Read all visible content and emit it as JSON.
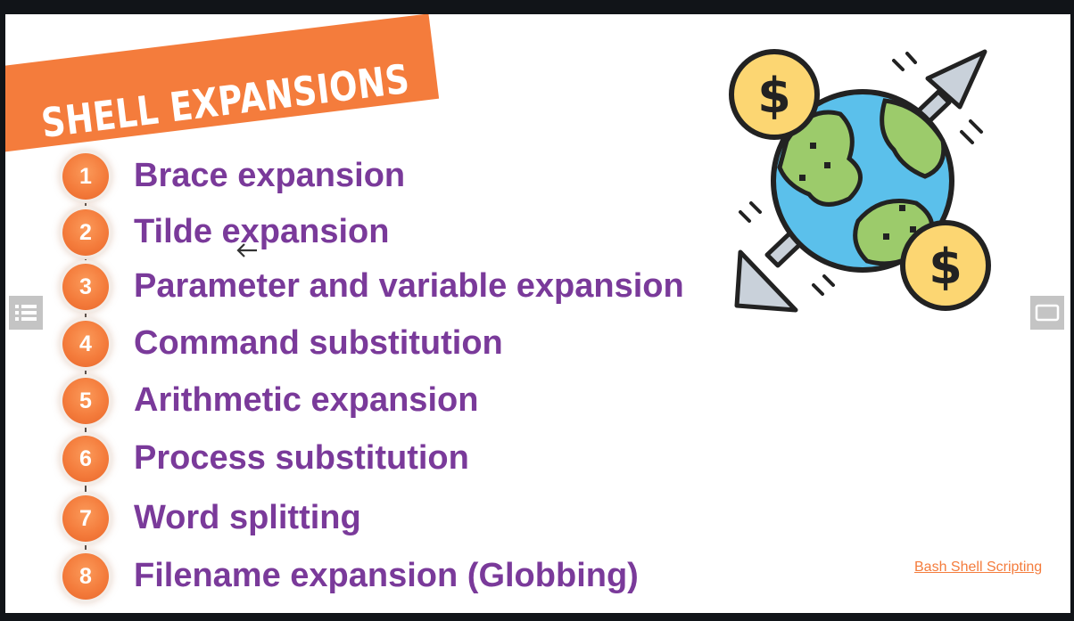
{
  "slide": {
    "title": "SHELL EXPANSIONS",
    "items": [
      {
        "number": "1",
        "label": "Brace expansion"
      },
      {
        "number": "2",
        "label": "Tilde expansion"
      },
      {
        "number": "3",
        "label": "Parameter and variable expansion"
      },
      {
        "number": "4",
        "label": "Command substitution"
      },
      {
        "number": "5",
        "label": "Arithmetic expansion"
      },
      {
        "number": "6",
        "label": "Process substitution"
      },
      {
        "number": "7",
        "label": "Word splitting"
      },
      {
        "number": "8",
        "label": "Filename expansion (Globbing)"
      }
    ],
    "footer_link": "Bash Shell Scripting",
    "illustration": "globe-with-dollar-coins-and-arrows-icon",
    "colors": {
      "accent_orange": "#f47c3c",
      "text_purple": "#7a3a9a",
      "globe_blue": "#5bc0eb",
      "land_green": "#9ccb6b",
      "coin_yellow": "#fcd672"
    }
  },
  "controls": {
    "left_button_icon": "list-icon",
    "right_button_icon": "screen-icon"
  }
}
